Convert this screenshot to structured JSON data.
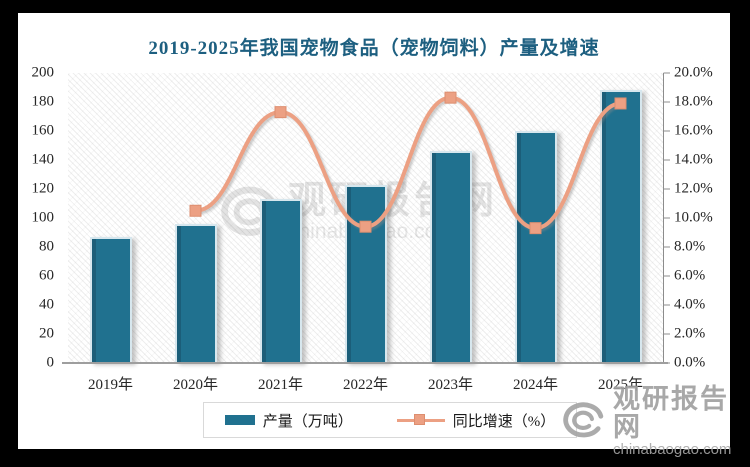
{
  "title": "2019-2025年我国宠物食品（宠物饲料）产量及增速",
  "chart_data": {
    "type": "bar",
    "subtype": "bar+line combo",
    "title": "2019-2025年我国宠物食品（宠物饲料）产量及增速",
    "categories": [
      "2019年",
      "2020年",
      "2021年",
      "2022年",
      "2023年",
      "2024年",
      "2025年"
    ],
    "series": [
      {
        "name": "产量（万吨）",
        "type": "bar",
        "axis": "left",
        "color": "#20718f",
        "values": [
          87,
          96,
          113,
          123,
          146,
          160,
          188
        ]
      },
      {
        "name": "同比增速（%）",
        "type": "line",
        "axis": "right",
        "color": "#eca083",
        "marker": "square",
        "values": [
          null,
          10.5,
          17.3,
          9.4,
          18.3,
          9.3,
          17.9
        ]
      }
    ],
    "left_axis": {
      "min": 0,
      "max": 200,
      "step": 20,
      "tick_labels": [
        "0",
        "20",
        "40",
        "60",
        "80",
        "100",
        "120",
        "140",
        "160",
        "180",
        "200"
      ]
    },
    "right_axis": {
      "min": 0,
      "max": 20,
      "step": 2,
      "tick_labels": [
        "0.0%",
        "2.0%",
        "4.0%",
        "6.0%",
        "8.0%",
        "10.0%",
        "12.0%",
        "14.0%",
        "16.0%",
        "18.0%",
        "20.0%"
      ]
    },
    "grid": false,
    "plot_background": "diagonal-hatch",
    "legend_position": "bottom"
  },
  "legend": {
    "items": [
      {
        "label": "产量（万吨）",
        "swatch": "bar"
      },
      {
        "label": "同比增速（%）",
        "swatch": "line-marker"
      }
    ]
  },
  "watermark_center": {
    "icon": "swirl-logo-icon",
    "brand": "观研报告网",
    "domain": "chinabaogao.com"
  },
  "watermark_corner": {
    "icon": "swirl-logo-icon",
    "brand": "观研报告网",
    "domain": "chinabaogao.com"
  },
  "colors": {
    "bar_fill": "#20718f",
    "bar_edge": "#d7e7ee",
    "line": "#eca083",
    "marker_border": "#dd8e6f",
    "title_text": "#1d5f80",
    "axis_text": "#262626",
    "axis_line": "#9e9e9e",
    "page_background": "#ffffff",
    "outer_background": "#000000",
    "watermark_gray": "#a8a8a8"
  }
}
